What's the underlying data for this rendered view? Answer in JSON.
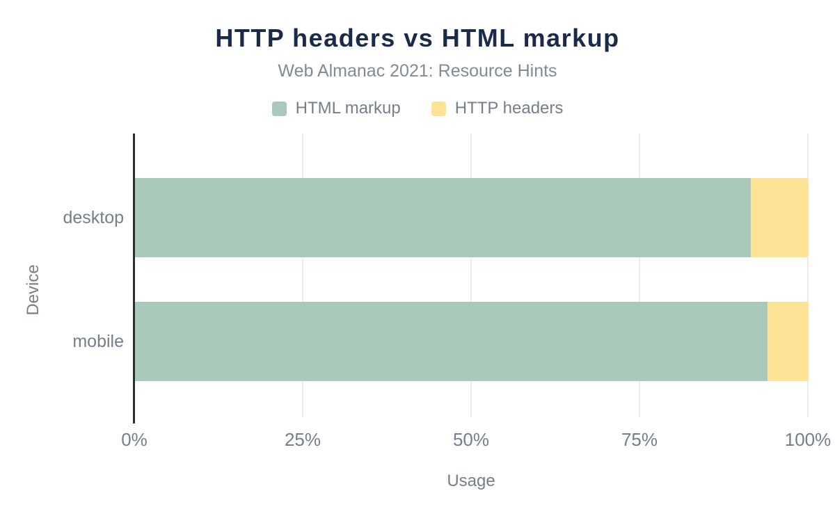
{
  "header": {
    "title": "HTTP headers vs HTML markup",
    "subtitle": "Web Almanac 2021: Resource Hints"
  },
  "legend": {
    "position": "top",
    "items": [
      {
        "label": "HTML markup",
        "color": "#a9cabb"
      },
      {
        "label": "HTTP headers",
        "color": "#fde396"
      }
    ]
  },
  "chart_data": {
    "type": "bar",
    "orientation": "horizontal",
    "stacked": true,
    "title": "HTTP headers vs HTML markup",
    "subtitle": "Web Almanac 2021: Resource Hints",
    "xlabel": "Usage",
    "ylabel": "Device",
    "xlim": [
      0,
      100
    ],
    "x_tick_labels": [
      "0%",
      "25%",
      "50%",
      "75%",
      "100%"
    ],
    "grid": "vertical",
    "legend_position": "top",
    "categories": [
      "desktop",
      "mobile"
    ],
    "series": [
      {
        "name": "HTML markup",
        "color": "#a9cabb",
        "values": [
          91.4,
          93.9
        ]
      },
      {
        "name": "HTTP headers",
        "color": "#fde396",
        "values": [
          8.6,
          6.1
        ]
      }
    ]
  },
  "colors": {
    "background": "#ffffff",
    "title": "#1a2b49",
    "subtitle": "#828a94",
    "text_muted": "#767e8a",
    "axis_line": "#2b2e33",
    "gridline": "#ededef"
  }
}
